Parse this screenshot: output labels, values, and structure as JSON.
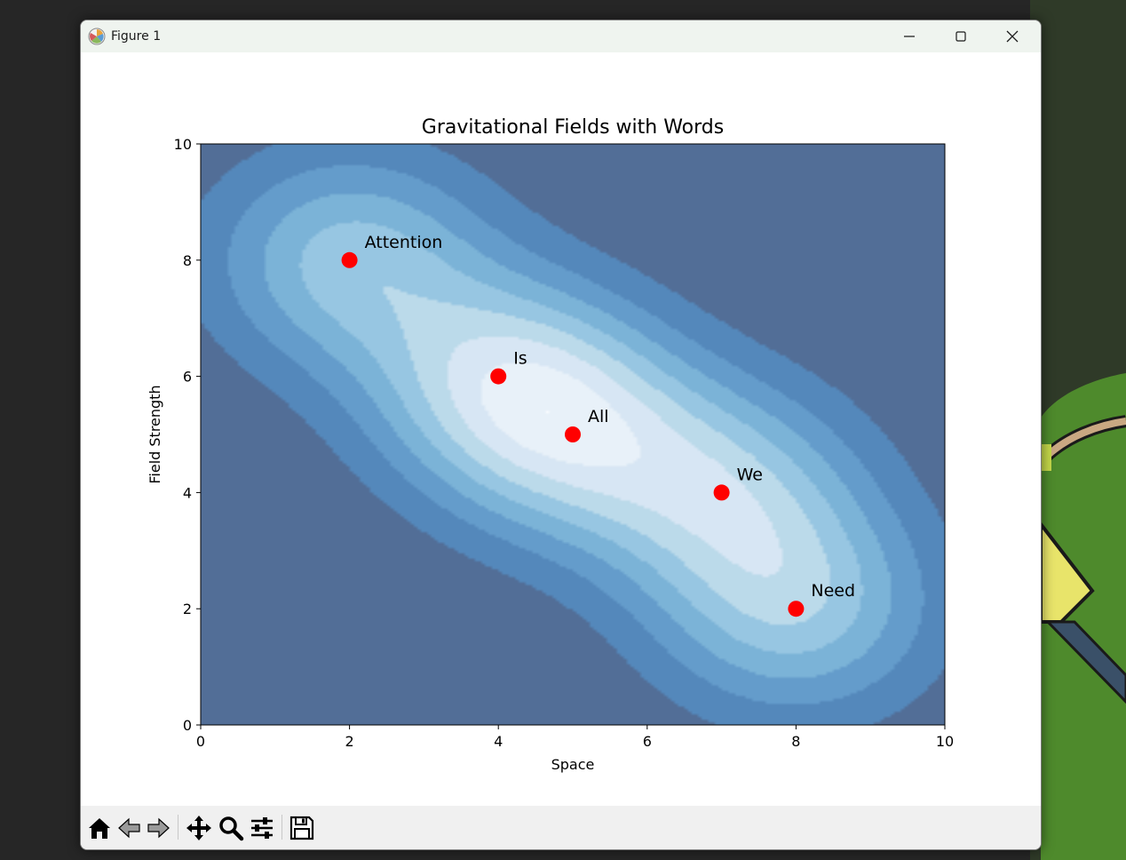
{
  "window": {
    "title": "Figure 1",
    "controls": [
      "minimize",
      "maximize",
      "close"
    ]
  },
  "chart_data": {
    "type": "contour",
    "title": "Gravitational Fields with Words",
    "xlabel": "Space",
    "ylabel": "Field Strength",
    "xlim": [
      0,
      10
    ],
    "ylim": [
      0,
      10
    ],
    "xticks": [
      0,
      2,
      4,
      6,
      8,
      10
    ],
    "yticks": [
      0,
      2,
      4,
      6,
      8,
      10
    ],
    "tick_labels_x": [
      "0",
      "2",
      "4",
      "6",
      "8",
      "10"
    ],
    "tick_labels_y": [
      "0",
      "2",
      "4",
      "6",
      "8",
      "10"
    ],
    "colormap": "Blues_r",
    "contour_alpha": 0.7,
    "marker_color": "#ff0000",
    "points": [
      {
        "word": "Attention",
        "x": 2,
        "y": 8
      },
      {
        "word": "Is",
        "x": 4,
        "y": 6
      },
      {
        "word": "All",
        "x": 5,
        "y": 5
      },
      {
        "word": "We",
        "x": 7,
        "y": 4
      },
      {
        "word": "Need",
        "x": 8,
        "y": 2
      }
    ]
  },
  "toolbar": {
    "tools": [
      {
        "name": "home-icon",
        "tooltip": "Reset original view"
      },
      {
        "name": "back-icon",
        "tooltip": "Back to previous view"
      },
      {
        "name": "forward-icon",
        "tooltip": "Forward to next view"
      },
      {
        "name": "pan-icon",
        "tooltip": "Pan axes"
      },
      {
        "name": "zoom-icon",
        "tooltip": "Zoom to rectangle"
      },
      {
        "name": "configure-subplots-icon",
        "tooltip": "Configure subplots"
      },
      {
        "name": "save-icon",
        "tooltip": "Save the figure"
      }
    ]
  }
}
